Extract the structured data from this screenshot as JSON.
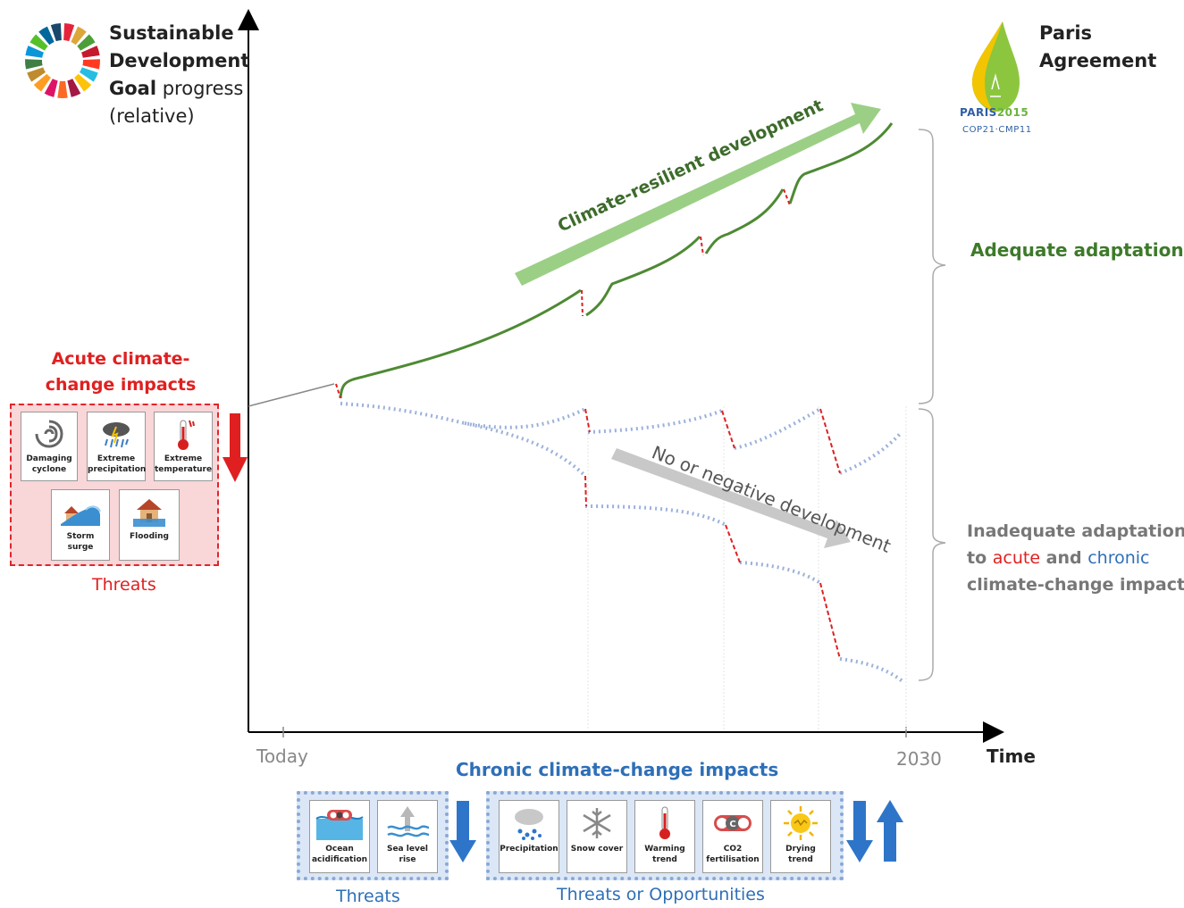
{
  "sdg": {
    "line1": "Sustainable",
    "line2": "Development",
    "line3_bold": "Goal",
    "line3_rest": " progress",
    "line4": "(relative)"
  },
  "paris": {
    "line1": "Paris",
    "line2": "Agreement",
    "logo_text": "PARIS",
    "logo_year": "2015",
    "logo_sub": "COP21·CMP11"
  },
  "diagram": {
    "resilient_label": "Climate-resilient development",
    "negative_label": "No or negative development",
    "adequate_label": "Adequate adaptation",
    "inadequate_line1": "Inadequate adaptation",
    "inadequate_line2_a": "to ",
    "inadequate_line2_acute": "acute",
    "inadequate_line2_and": " and ",
    "inadequate_line2_chronic": "chronic",
    "inadequate_line3": "climate-change impacts"
  },
  "axes": {
    "x_start_label": "Today",
    "x_end_label": "2030",
    "x_axis_label": "Time"
  },
  "acute": {
    "title_line1": "Acute climate-",
    "title_line2": "change impacts",
    "footer": "Threats",
    "tiles": [
      {
        "line1": "Damaging",
        "line2": "cyclone",
        "icon": "cyclone-icon"
      },
      {
        "line1": "Extreme",
        "line2": "precipitation",
        "icon": "rain-cloud-icon"
      },
      {
        "line1": "Extreme",
        "line2": "temperature",
        "icon": "thermometer-icon"
      },
      {
        "line1": "Storm",
        "line2": "surge",
        "icon": "storm-surge-icon"
      },
      {
        "line1": "Flooding",
        "line2": "",
        "icon": "flooding-icon"
      }
    ]
  },
  "chronic": {
    "title": "Chronic climate-change impacts",
    "threats_footer": "Threats",
    "opps_footer": "Threats or Opportunities",
    "threat_tiles": [
      {
        "line1": "Ocean",
        "line2": "acidification",
        "icon": "ocean-acidification-icon"
      },
      {
        "line1": "Sea level",
        "line2": "rise",
        "icon": "sea-level-rise-icon"
      }
    ],
    "opp_tiles": [
      {
        "line1": "Precipitation",
        "line2": "",
        "icon": "precipitation-icon"
      },
      {
        "line1": "Snow cover",
        "line2": "",
        "icon": "snowflake-icon"
      },
      {
        "line1": "Warming",
        "line2": "trend",
        "icon": "thermometer-icon"
      },
      {
        "line1": "CO2",
        "line2": "fertilisation",
        "icon": "co2-icon"
      },
      {
        "line1": "Drying",
        "line2": "trend",
        "icon": "sun-icon"
      }
    ]
  },
  "colors": {
    "green_line": "#4e8a34",
    "green_arrow": "#9ccf86",
    "gray_arrow": "#c8c8c8",
    "dotted_blue": "#9bb2db",
    "red_dash": "#e02020",
    "acute_box": "#f9d6d8",
    "chronic_box": "#dbe7f6"
  }
}
